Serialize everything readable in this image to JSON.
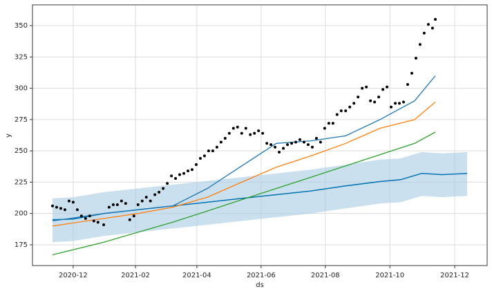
{
  "chart_data": {
    "type": "forecast",
    "x_label": "ds",
    "y_label": "y",
    "xlim": [
      -1.28,
      13.02
    ],
    "xticks": [
      {
        "value": 0,
        "label": "2020-12"
      },
      {
        "value": 1.96,
        "label": "2021-02"
      },
      {
        "value": 3.89,
        "label": "2021-04"
      },
      {
        "value": 5.91,
        "label": "2021-06"
      },
      {
        "value": 7.93,
        "label": "2021-08"
      },
      {
        "value": 9.96,
        "label": "2021-10"
      },
      {
        "value": 12,
        "label": "2021-12"
      }
    ],
    "ylim": [
      158.4,
      366.6
    ],
    "yticks": [
      175,
      200,
      225,
      250,
      275,
      300,
      325,
      350
    ],
    "grid": true,
    "series": [
      {
        "kind": "band-line",
        "color": "#0072b2",
        "band_color": "#a6cbe3",
        "x": [
          -0.65,
          0,
          0.96,
          2.04,
          3.13,
          4.22,
          5.3,
          6.39,
          7.48,
          8.57,
          9.65,
          10.3,
          10.96,
          11.61,
          12.39
        ],
        "values": [
          195,
          195.5,
          200,
          203,
          206,
          209,
          212,
          215,
          218,
          222,
          225.5,
          227,
          232,
          231,
          232
        ],
        "lower": [
          177,
          178,
          182,
          185,
          188,
          191,
          194,
          197,
          200,
          204,
          208,
          209,
          214,
          213,
          214
        ],
        "upper": [
          212,
          213,
          217,
          220,
          223,
          226,
          229,
          232,
          235,
          239,
          243,
          244,
          249,
          248,
          249
        ]
      },
      {
        "kind": "line",
        "color": "#1f77b4",
        "x": [
          -0.65,
          0.96,
          2.04,
          3.13,
          4.22,
          5.3,
          6.39,
          7.48,
          8.57,
          9.65,
          10.74,
          11.39
        ],
        "values": [
          194,
          200,
          203,
          206,
          220,
          238,
          256,
          258,
          262,
          275,
          290,
          310
        ]
      },
      {
        "kind": "line",
        "color": "#ff7f0e",
        "x": [
          -0.65,
          0.96,
          2.04,
          3.13,
          4.22,
          5.3,
          6.39,
          7.48,
          8.57,
          9.65,
          10.74,
          11.39
        ],
        "values": [
          190,
          196,
          200,
          205,
          213,
          225,
          237,
          246,
          256,
          268,
          275,
          289
        ]
      },
      {
        "kind": "line",
        "color": "#2ca02c",
        "x": [
          -0.65,
          0.96,
          2.04,
          3.13,
          4.22,
          5.3,
          6.39,
          7.48,
          8.57,
          9.65,
          10.74,
          11.39
        ],
        "values": [
          167,
          177,
          185,
          193,
          202,
          211,
          220,
          229,
          238,
          247,
          256,
          265
        ]
      },
      {
        "kind": "points",
        "color": "#000000",
        "x": [
          -0.65,
          -0.52,
          -0.39,
          -0.26,
          -0.13,
          0,
          0.13,
          0.26,
          0.39,
          0.52,
          0.65,
          0.78,
          0.96,
          1.13,
          1.26,
          1.39,
          1.52,
          1.65,
          1.78,
          1.91,
          2.04,
          2.17,
          2.3,
          2.43,
          2.57,
          2.7,
          2.83,
          2.96,
          3.09,
          3.22,
          3.35,
          3.48,
          3.61,
          3.74,
          3.87,
          4.0,
          4.13,
          4.26,
          4.39,
          4.52,
          4.65,
          4.78,
          4.91,
          5.04,
          5.17,
          5.3,
          5.43,
          5.57,
          5.7,
          5.83,
          5.96,
          6.09,
          6.22,
          6.35,
          6.48,
          6.61,
          6.74,
          6.87,
          7.0,
          7.13,
          7.26,
          7.39,
          7.52,
          7.65,
          7.78,
          7.91,
          8.04,
          8.17,
          8.3,
          8.43,
          8.57,
          8.7,
          8.83,
          8.96,
          9.09,
          9.22,
          9.35,
          9.48,
          9.61,
          9.74,
          9.87,
          10.0,
          10.13,
          10.26,
          10.39,
          10.52,
          10.65,
          10.78,
          10.91,
          11.04,
          11.17,
          11.3,
          11.39
        ],
        "values": [
          206,
          205,
          204,
          203,
          210,
          209,
          203,
          198,
          196,
          198,
          194,
          193,
          191,
          205,
          207,
          207,
          210,
          208,
          195,
          198,
          207,
          210,
          213,
          210,
          215,
          217,
          220,
          224,
          230,
          228,
          231,
          232,
          234,
          235,
          239,
          244,
          246,
          250,
          250,
          253,
          257,
          260,
          264,
          268,
          269,
          264,
          268,
          263,
          264,
          266,
          264,
          256,
          255,
          253,
          249,
          252,
          255,
          256,
          257,
          259,
          257,
          255,
          253,
          260,
          257,
          268,
          272,
          272,
          279,
          282,
          282,
          285,
          288,
          293,
          300,
          301,
          290,
          289,
          293,
          299,
          301,
          285,
          288,
          288,
          289,
          303,
          312,
          324,
          335,
          344,
          351,
          348,
          355
        ]
      }
    ]
  }
}
